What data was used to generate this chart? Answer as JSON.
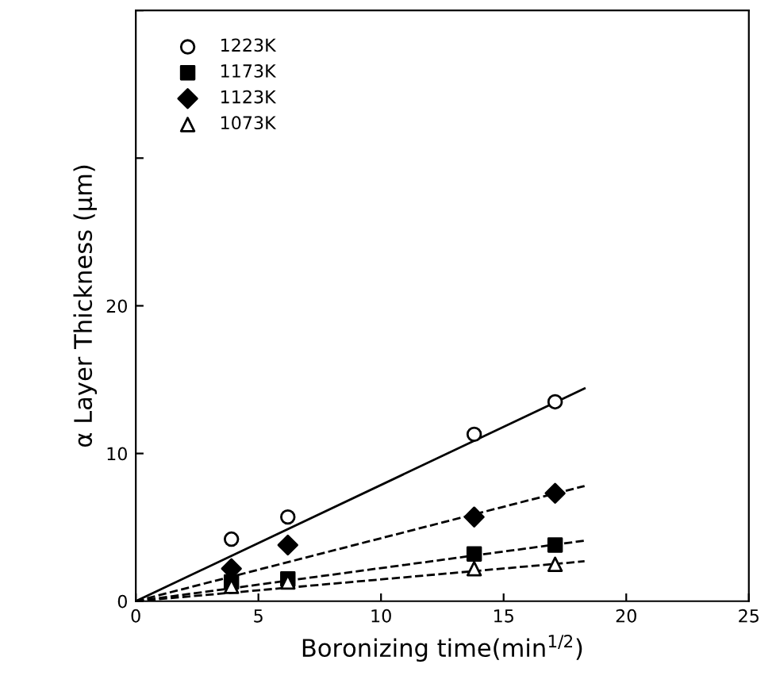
{
  "chart_data": {
    "type": "scatter",
    "xlabel": "Boronizing time(min$^{1/2}$)",
    "ylabel": "α Layer Thickness (μm)",
    "xlim": [
      0,
      25
    ],
    "xticks": [
      0,
      5,
      10,
      15,
      20,
      25
    ],
    "ylim": [
      0,
      40
    ],
    "yticks": [
      0,
      10,
      20,
      {
        "value": 30,
        "label": null
      },
      {
        "value": 40,
        "label": null
      }
    ],
    "grid": false,
    "legend": "top left",
    "series": [
      {
        "name": "1223K",
        "color": "#000000",
        "marker": "circle",
        "x": [
          3.9,
          6.2,
          13.8,
          17.1
        ],
        "values": [
          4.2,
          5.7,
          11.3,
          13.5
        ]
      },
      {
        "name": "1173K",
        "color": "#000000",
        "marker": "square",
        "x": [
          3.9,
          6.2,
          13.8,
          17.1
        ],
        "values": [
          1.3,
          1.5,
          3.2,
          3.8
        ]
      },
      {
        "name": "1123K",
        "color": "#000000",
        "marker": "diamond",
        "x": [
          3.9,
          6.2,
          13.8,
          17.1
        ],
        "values": [
          2.2,
          3.8,
          5.7,
          7.3
        ]
      },
      {
        "name": "1073K",
        "color": "#000000",
        "marker": "triangle",
        "x": [
          3.9,
          6.2,
          13.8,
          17.1
        ],
        "values": [
          1.0,
          1.3,
          2.2,
          2.5
        ]
      },
      {
        "type": "line",
        "color": "#000000",
        "line_style": "solid",
        "x": [
          0,
          18.3
        ],
        "values": [
          0,
          14.4
        ]
      },
      {
        "type": "line",
        "color": "#000000",
        "line_style": "dashed",
        "x": [
          0,
          18.3
        ],
        "values": [
          0,
          7.8
        ]
      },
      {
        "type": "line",
        "color": "#000000",
        "line_style": "dashed",
        "x": [
          0,
          18.3
        ],
        "values": [
          0,
          4.1
        ]
      },
      {
        "type": "line",
        "color": "#000000",
        "line_style": "dashed",
        "x": [
          0,
          18.3
        ],
        "values": [
          0,
          2.7
        ]
      }
    ]
  }
}
